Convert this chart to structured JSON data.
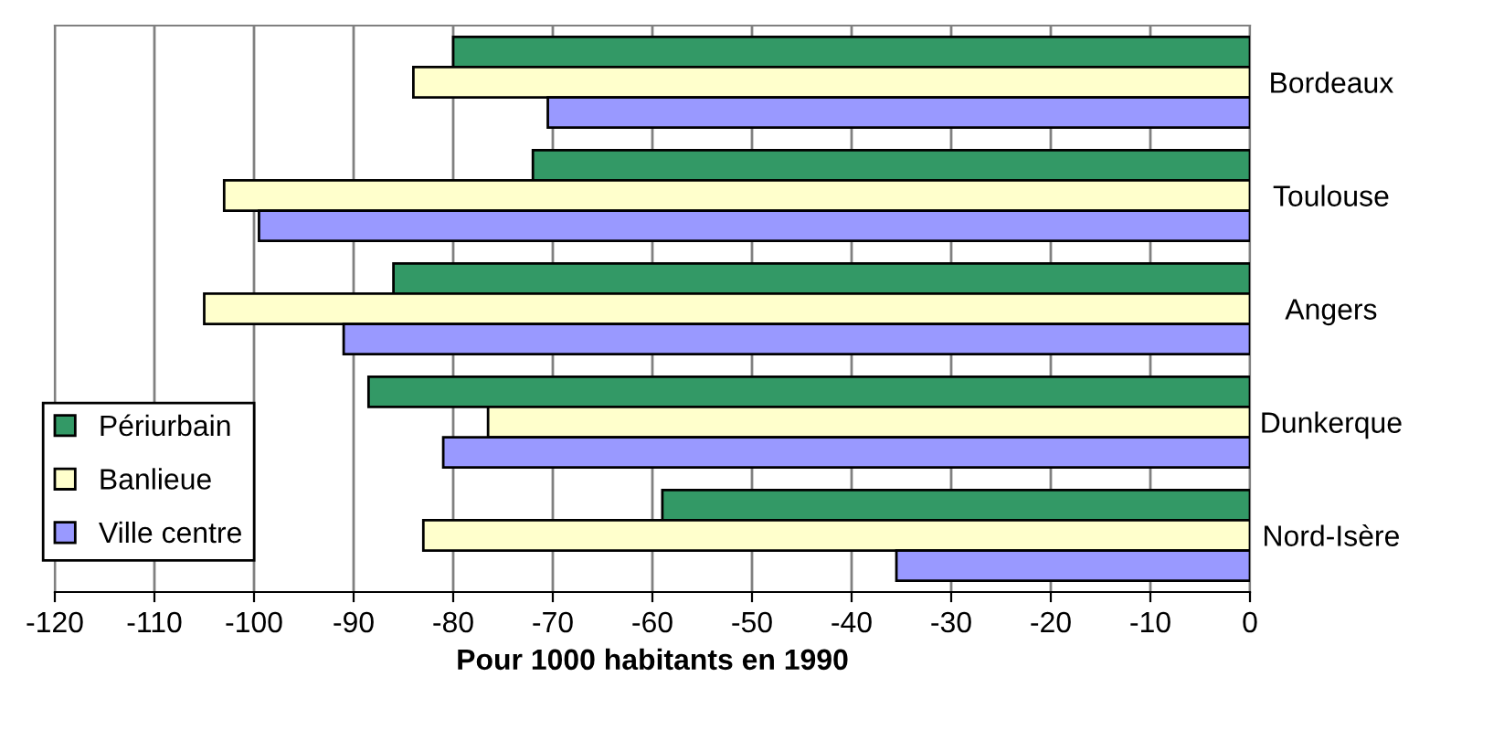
{
  "chart_data": {
    "type": "bar",
    "orientation": "horizontal",
    "xlabel": "Pour 1000 habitants en 1990",
    "categories": [
      "Bordeaux",
      "Toulouse",
      "Angers",
      "Dunkerque",
      "Nord-Isère"
    ],
    "series": [
      {
        "name": "Périurbain",
        "color": "#339966",
        "values": [
          -80,
          -72,
          -86,
          -88.5,
          -59
        ]
      },
      {
        "name": "Banlieue",
        "color": "#ffffcc",
        "values": [
          -84,
          -103,
          -105,
          -76.5,
          -83
        ]
      },
      {
        "name": "Ville centre",
        "color": "#9999ff",
        "values": [
          -70.5,
          -99.5,
          -91,
          -81,
          -35.5
        ]
      }
    ],
    "xlim": [
      -120,
      0
    ],
    "xticks": [
      -120,
      -110,
      -100,
      -90,
      -80,
      -70,
      -60,
      -50,
      -40,
      -30,
      -20,
      -10,
      0
    ],
    "grid": "x",
    "legend": "bottom left"
  }
}
